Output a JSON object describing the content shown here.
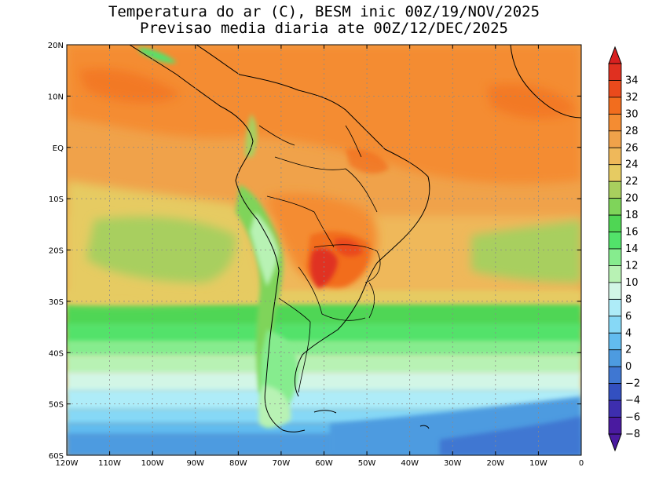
{
  "title": {
    "line1": "Temperatura do ar (C), BESM inic 00Z/19/NOV/2025",
    "line2": "Previsao media diaria ate 00Z/12/DEC/2025"
  },
  "map": {
    "lon_range": [
      -120,
      0
    ],
    "lat_range": [
      -60,
      20
    ],
    "lat_ticks": [
      {
        "lat": 20,
        "label": "20N"
      },
      {
        "lat": 10,
        "label": "10N"
      },
      {
        "lat": 0,
        "label": "EQ"
      },
      {
        "lat": -10,
        "label": "10S"
      },
      {
        "lat": -20,
        "label": "20S"
      },
      {
        "lat": -30,
        "label": "30S"
      },
      {
        "lat": -40,
        "label": "40S"
      },
      {
        "lat": -50,
        "label": "50S"
      },
      {
        "lat": -60,
        "label": "60S"
      }
    ],
    "lon_ticks": [
      {
        "lon": -120,
        "label": "120W"
      },
      {
        "lon": -110,
        "label": "110W"
      },
      {
        "lon": -100,
        "label": "100W"
      },
      {
        "lon": -90,
        "label": "90W"
      },
      {
        "lon": -80,
        "label": "80W"
      },
      {
        "lon": -70,
        "label": "70W"
      },
      {
        "lon": -60,
        "label": "60W"
      },
      {
        "lon": -50,
        "label": "50W"
      },
      {
        "lon": -40,
        "label": "40W"
      },
      {
        "lon": -30,
        "label": "30W"
      },
      {
        "lon": -20,
        "label": "20W"
      },
      {
        "lon": -10,
        "label": "10W"
      },
      {
        "lon": 0,
        "label": "0"
      }
    ]
  },
  "colorbar": {
    "levels": [
      {
        "label": "34",
        "color": "#e03020"
      },
      {
        "label": "32",
        "color": "#ea4a1c"
      },
      {
        "label": "30",
        "color": "#f26d1e"
      },
      {
        "label": "28",
        "color": "#f48c32"
      },
      {
        "label": "26",
        "color": "#f0a24a"
      },
      {
        "label": "24",
        "color": "#efb85a"
      },
      {
        "label": "22",
        "color": "#e6cb62"
      },
      {
        "label": "20",
        "color": "#a8cf5e"
      },
      {
        "label": "18",
        "color": "#7fd45a"
      },
      {
        "label": "16",
        "color": "#4fd654"
      },
      {
        "label": "14",
        "color": "#52e26a"
      },
      {
        "label": "12",
        "color": "#86ec8e"
      },
      {
        "label": "10",
        "color": "#b8f2b4"
      },
      {
        "label": "8",
        "color": "#d2f6e6"
      },
      {
        "label": "6",
        "color": "#aeecf8"
      },
      {
        "label": "4",
        "color": "#86d8f6"
      },
      {
        "label": "2",
        "color": "#62bcef"
      },
      {
        "label": "0",
        "color": "#4d9be0"
      },
      {
        "label": "−2",
        "color": "#3f77d2"
      },
      {
        "label": "−4",
        "color": "#3350c0"
      },
      {
        "label": "−6",
        "color": "#3d2eae"
      },
      {
        "label": "−8",
        "color": "#4a1aa0"
      }
    ],
    "top_color": "#d82020",
    "bottom_color": "#4a1aa0"
  }
}
